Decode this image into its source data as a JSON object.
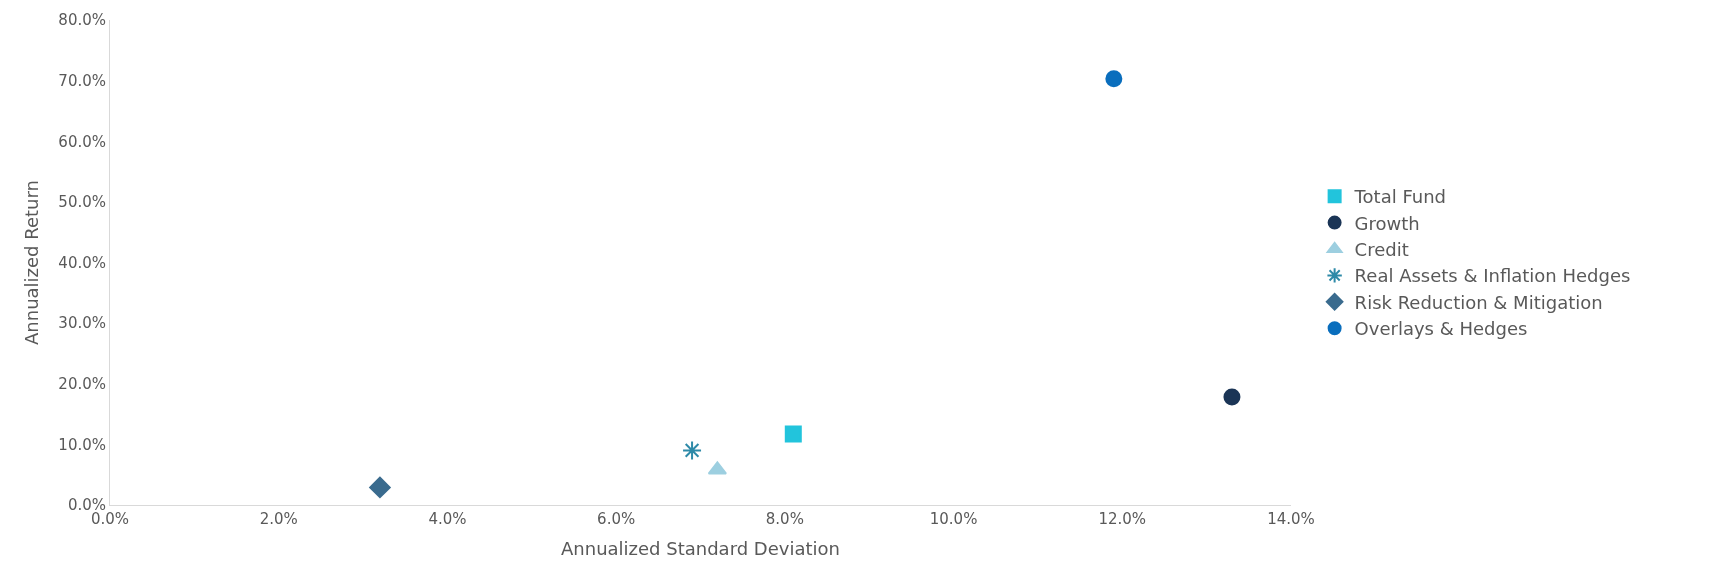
{
  "chart_data": {
    "type": "scatter",
    "xlabel": "Annualized Standard Deviation",
    "ylabel": "Annualized Return",
    "xlim": [
      0,
      14
    ],
    "xticks": [
      {
        "value": 0,
        "label": "0.0%"
      },
      {
        "value": 2,
        "label": "2.0%"
      },
      {
        "value": 4,
        "label": "4.0%"
      },
      {
        "value": 6,
        "label": "6.0%"
      },
      {
        "value": 8,
        "label": "8.0%"
      },
      {
        "value": 10,
        "label": "10.0%"
      },
      {
        "value": 12,
        "label": "12.0%"
      },
      {
        "value": 14,
        "label": "14.0%"
      }
    ],
    "ylim": [
      0,
      80
    ],
    "yticks": [
      {
        "value": 0,
        "label": "0.0%"
      },
      {
        "value": 10,
        "label": "10.0%"
      },
      {
        "value": 20,
        "label": "20.0%"
      },
      {
        "value": 30,
        "label": "30.0%"
      },
      {
        "value": 40,
        "label": "40.0%"
      },
      {
        "value": 50,
        "label": "50.0%"
      },
      {
        "value": 60,
        "label": "60.0%"
      },
      {
        "value": 70,
        "label": "70.0%"
      },
      {
        "value": 80,
        "label": "80.0%"
      }
    ],
    "legend": "right",
    "series": [
      {
        "name": "Total Fund",
        "color": "#22c4dc",
        "marker": "square",
        "x": [
          8.1
        ],
        "values": [
          11.7
        ]
      },
      {
        "name": "Growth",
        "color": "#1b3556",
        "marker": "circle",
        "x": [
          13.3
        ],
        "values": [
          17.8
        ]
      },
      {
        "name": "Credit",
        "color": "#9dcfe0",
        "marker": "triangle",
        "x": [
          7.2
        ],
        "values": [
          5.8
        ]
      },
      {
        "name": "Real Assets & Inflation Hedges",
        "color": "#2e8aa8",
        "marker": "cross",
        "x": [
          6.9
        ],
        "values": [
          9.0
        ]
      },
      {
        "name": "Risk Reduction & Mitigation",
        "color": "#3a6b8e",
        "marker": "diamond",
        "x": [
          3.2
        ],
        "values": [
          2.9
        ]
      },
      {
        "name": "Overlays & Hedges",
        "color": "#0a6ebd",
        "marker": "circle",
        "x": [
          11.9
        ],
        "values": [
          70.3
        ]
      }
    ]
  }
}
